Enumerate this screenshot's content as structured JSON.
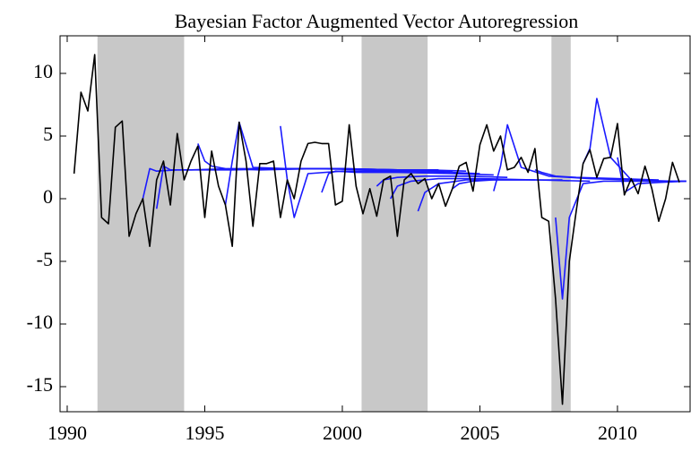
{
  "chart_data": {
    "type": "line",
    "title": "Bayesian Factor Augmented Vector Autoregression",
    "xlim": [
      1989.74,
      2012.64
    ],
    "xticks": [
      1990,
      1995,
      2000,
      2005,
      2010
    ],
    "ylim": [
      -17,
      13
    ],
    "yticks": [
      -15,
      -10,
      -5,
      0,
      5,
      10
    ],
    "shaded_regions": [
      [
        1991.1,
        1994.25
      ],
      [
        2000.7,
        2003.1
      ],
      [
        2007.6,
        2008.3
      ]
    ],
    "shade_color": "#c8c8c8",
    "series": [
      {
        "color": "#000000",
        "x": [
          1990.25,
          1990.5,
          1990.75,
          1991,
          1991.25,
          1991.5,
          1991.75,
          1992,
          1992.25,
          1992.5,
          1992.75,
          1993,
          1993.25,
          1993.5,
          1993.75,
          1994,
          1994.25,
          1994.5,
          1994.75,
          1995,
          1995.25,
          1995.5,
          1995.75,
          1996,
          1996.25,
          1996.5,
          1996.75,
          1997,
          1997.25,
          1997.5,
          1997.75,
          1998,
          1998.25,
          1998.5,
          1998.75,
          1999,
          1999.25,
          1999.5,
          1999.75,
          2000,
          2000.25,
          2000.5,
          2000.75,
          2001,
          2001.25,
          2001.5,
          2001.75,
          2002,
          2002.25,
          2002.5,
          2002.75,
          2003,
          2003.25,
          2003.5,
          2003.75,
          2004,
          2004.25,
          2004.5,
          2004.75,
          2005,
          2005.25,
          2005.5,
          2005.75,
          2006,
          2006.25,
          2006.5,
          2006.75,
          2007,
          2007.25,
          2007.5,
          2007.75,
          2008,
          2008.25,
          2008.5,
          2008.75,
          2009,
          2009.25,
          2009.5,
          2009.75,
          2010,
          2010.25,
          2010.5,
          2010.75,
          2011,
          2011.25,
          2011.5,
          2011.75,
          2012,
          2012.25
        ],
        "values": [
          2,
          8.5,
          7,
          11.5,
          -1.5,
          -2,
          5.7,
          6.2,
          -3,
          -1.2,
          0,
          -3.8,
          1.5,
          3,
          -0.5,
          5.2,
          1.5,
          3,
          4.2,
          -1.5,
          3.8,
          1,
          -0.5,
          -3.8,
          6.1,
          3,
          -2.2,
          2.8,
          2.8,
          3,
          -1.5,
          1.5,
          0,
          3,
          4.4,
          4.5,
          4.4,
          4.4,
          -0.5,
          -0.2,
          5.9,
          1,
          -1.2,
          0.8,
          -1.4,
          1.5,
          1.8,
          -3,
          1.5,
          2,
          1.2,
          1.6,
          0,
          1.2,
          -0.6,
          0.8,
          2.6,
          2.9,
          0.6,
          4.3,
          5.9,
          3.8,
          5,
          2.3,
          2.5,
          3.3,
          2.1,
          4,
          -1.5,
          -1.8,
          -8,
          -16.4,
          -5,
          -1,
          2.8,
          3.9,
          1.7,
          3.2,
          3.3,
          6,
          0.3,
          1.6,
          0.4,
          2.6,
          0.8,
          -1.8,
          0,
          2.9,
          1.3
        ]
      },
      {
        "color": "#1a1aff",
        "x": [
          1992.75,
          1993,
          1993.25,
          1994,
          1996,
          1998,
          2000,
          2002,
          2003.5
        ],
        "values": [
          0,
          2.4,
          2.2,
          2.3,
          2.3,
          2.4,
          2.4,
          2.3,
          2.3
        ]
      },
      {
        "color": "#1a1aff",
        "x": [
          1993.25,
          1993.5,
          1993.75,
          1994.5,
          1996,
          1998,
          2000,
          2002,
          2004
        ],
        "values": [
          -0.8,
          2.6,
          2.3,
          2.3,
          2.4,
          2.4,
          2.4,
          2.3,
          2.2
        ]
      },
      {
        "color": "#1a1aff",
        "x": [
          1994.75,
          1995,
          1995.25,
          1995.75,
          1997,
          1999,
          2001,
          2003,
          2004.5
        ],
        "values": [
          4.4,
          3,
          2.6,
          2.4,
          2.3,
          2.4,
          2.3,
          2.3,
          2.2
        ]
      },
      {
        "color": "#1a1aff",
        "x": [
          1995.75,
          1996,
          1996.25,
          1996.75,
          1998,
          2000,
          2002,
          2004
        ],
        "values": [
          -0.5,
          3,
          6.1,
          2.5,
          2.4,
          2.4,
          2.3,
          2.2
        ]
      },
      {
        "color": "#1a1aff",
        "x": [
          1997.75,
          1998,
          1998.25,
          1998.75,
          2000,
          2002,
          2004,
          2005
        ],
        "values": [
          5.8,
          1.5,
          -1.5,
          2,
          2.2,
          2.2,
          2.1,
          2
        ]
      },
      {
        "color": "#1a1aff",
        "x": [
          1999.25,
          1999.5,
          1999.75,
          2000.5,
          2002,
          2004,
          2005.5
        ],
        "values": [
          0.5,
          2,
          2.2,
          2.1,
          2.1,
          2,
          1.9
        ]
      },
      {
        "color": "#1a1aff",
        "x": [
          2001.25,
          2001.5,
          2002,
          2003,
          2004.5,
          2006
        ],
        "values": [
          1,
          1.5,
          1.7,
          1.8,
          1.8,
          1.7
        ]
      },
      {
        "color": "#1a1aff",
        "x": [
          2001.75,
          2002,
          2002.5,
          2003.5,
          2005,
          2007
        ],
        "values": [
          0,
          1,
          1.4,
          1.6,
          1.6,
          1.5
        ]
      },
      {
        "color": "#1a1aff",
        "x": [
          2002.75,
          2003,
          2003.5,
          2004.5,
          2006,
          2008
        ],
        "values": [
          -1,
          0.5,
          1.2,
          1.5,
          1.5,
          1.5
        ]
      },
      {
        "color": "#1a1aff",
        "x": [
          2004,
          2004.25,
          2004.75,
          2005.5,
          2007,
          2009
        ],
        "values": [
          0.8,
          1.2,
          1.4,
          1.5,
          1.5,
          1.4
        ]
      },
      {
        "color": "#1a1aff",
        "x": [
          2005.5,
          2005.75,
          2006,
          2006.5,
          2007.5,
          2009,
          2010.5
        ],
        "values": [
          0.6,
          2.6,
          5.9,
          2.5,
          1.8,
          1.6,
          1.5
        ]
      },
      {
        "color": "#1a1aff",
        "x": [
          2007,
          2007.25,
          2007.75,
          2008.5,
          2010,
          2011.5
        ],
        "values": [
          2.3,
          2.1,
          1.8,
          1.7,
          1.6,
          1.5
        ]
      },
      {
        "color": "#1a1aff",
        "x": [
          2007.75,
          2008,
          2008.25,
          2008.75,
          2009.5,
          2011,
          2012.5
        ],
        "values": [
          -1.5,
          -8,
          -1.5,
          1.2,
          1.4,
          1.4,
          1.4
        ]
      },
      {
        "color": "#1a1aff",
        "x": [
          2008.75,
          2009,
          2009.25,
          2009.75,
          2010.5,
          2012,
          2012.5
        ],
        "values": [
          2.8,
          4,
          8,
          3.3,
          1.5,
          1.4,
          1.4
        ]
      },
      {
        "color": "#1a1aff",
        "x": [
          2010,
          2010.25,
          2010.75,
          2011.5,
          2012.5
        ],
        "values": [
          3.3,
          0.5,
          1.2,
          1.3,
          1.4
        ]
      }
    ]
  }
}
